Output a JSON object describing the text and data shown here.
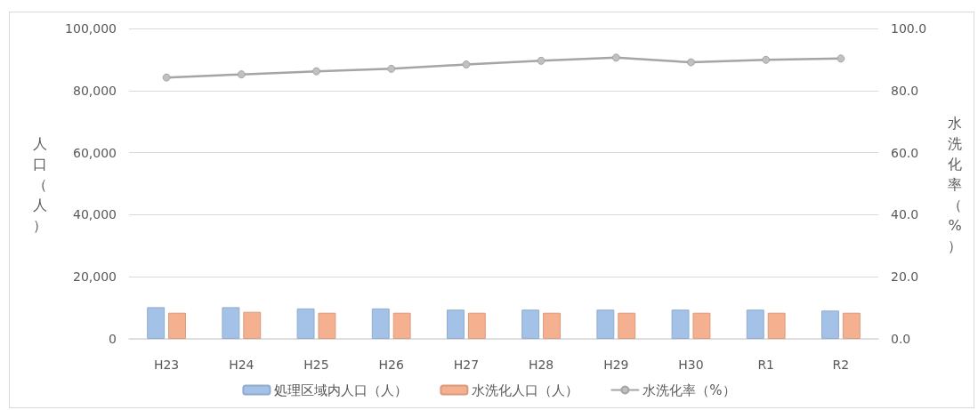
{
  "chart_data": {
    "type": "bar",
    "categories": [
      "H23",
      "H24",
      "H25",
      "H26",
      "H27",
      "H28",
      "H29",
      "H30",
      "R1",
      "R2"
    ],
    "series": [
      {
        "name": "処理区域内人口（人）",
        "color": "#a4c2e8",
        "values": [
          10200,
          10200,
          9800,
          9800,
          9400,
          9400,
          9400,
          9400,
          9400,
          9100
        ]
      },
      {
        "name": "水洗化人口（人）",
        "color": "#f5b08f",
        "values": [
          8400,
          8700,
          8400,
          8400,
          8400,
          8400,
          8400,
          8400,
          8400,
          8400
        ]
      },
      {
        "name": "水洗化率（%）",
        "type": "line",
        "axis": "y2",
        "color": "#a5a5a5",
        "values": [
          84.2,
          85.2,
          86.2,
          87.0,
          88.4,
          89.6,
          90.6,
          89.1,
          89.9,
          90.3
        ]
      }
    ],
    "ylabel": "人口（人）",
    "y2label": "水洗化率（%）",
    "ylim": [
      0,
      100000
    ],
    "yticks": [
      {
        "value": 0,
        "label": "0"
      },
      {
        "value": 20000,
        "label": "20,000"
      },
      {
        "value": 40000,
        "label": "40,000"
      },
      {
        "value": 60000,
        "label": "60,000"
      },
      {
        "value": 80000,
        "label": "80,000"
      },
      {
        "value": 100000,
        "label": "100,000"
      }
    ],
    "y2lim": [
      0,
      100
    ],
    "y2ticks": [
      {
        "value": 0,
        "label": "0.0"
      },
      {
        "value": 20,
        "label": "20.0"
      },
      {
        "value": 40,
        "label": "40.0"
      },
      {
        "value": 60,
        "label": "60.0"
      },
      {
        "value": 80,
        "label": "80.0"
      },
      {
        "value": 100,
        "label": "100.0"
      }
    ],
    "grid": "y",
    "legend": "bottom",
    "marker": "circle"
  }
}
